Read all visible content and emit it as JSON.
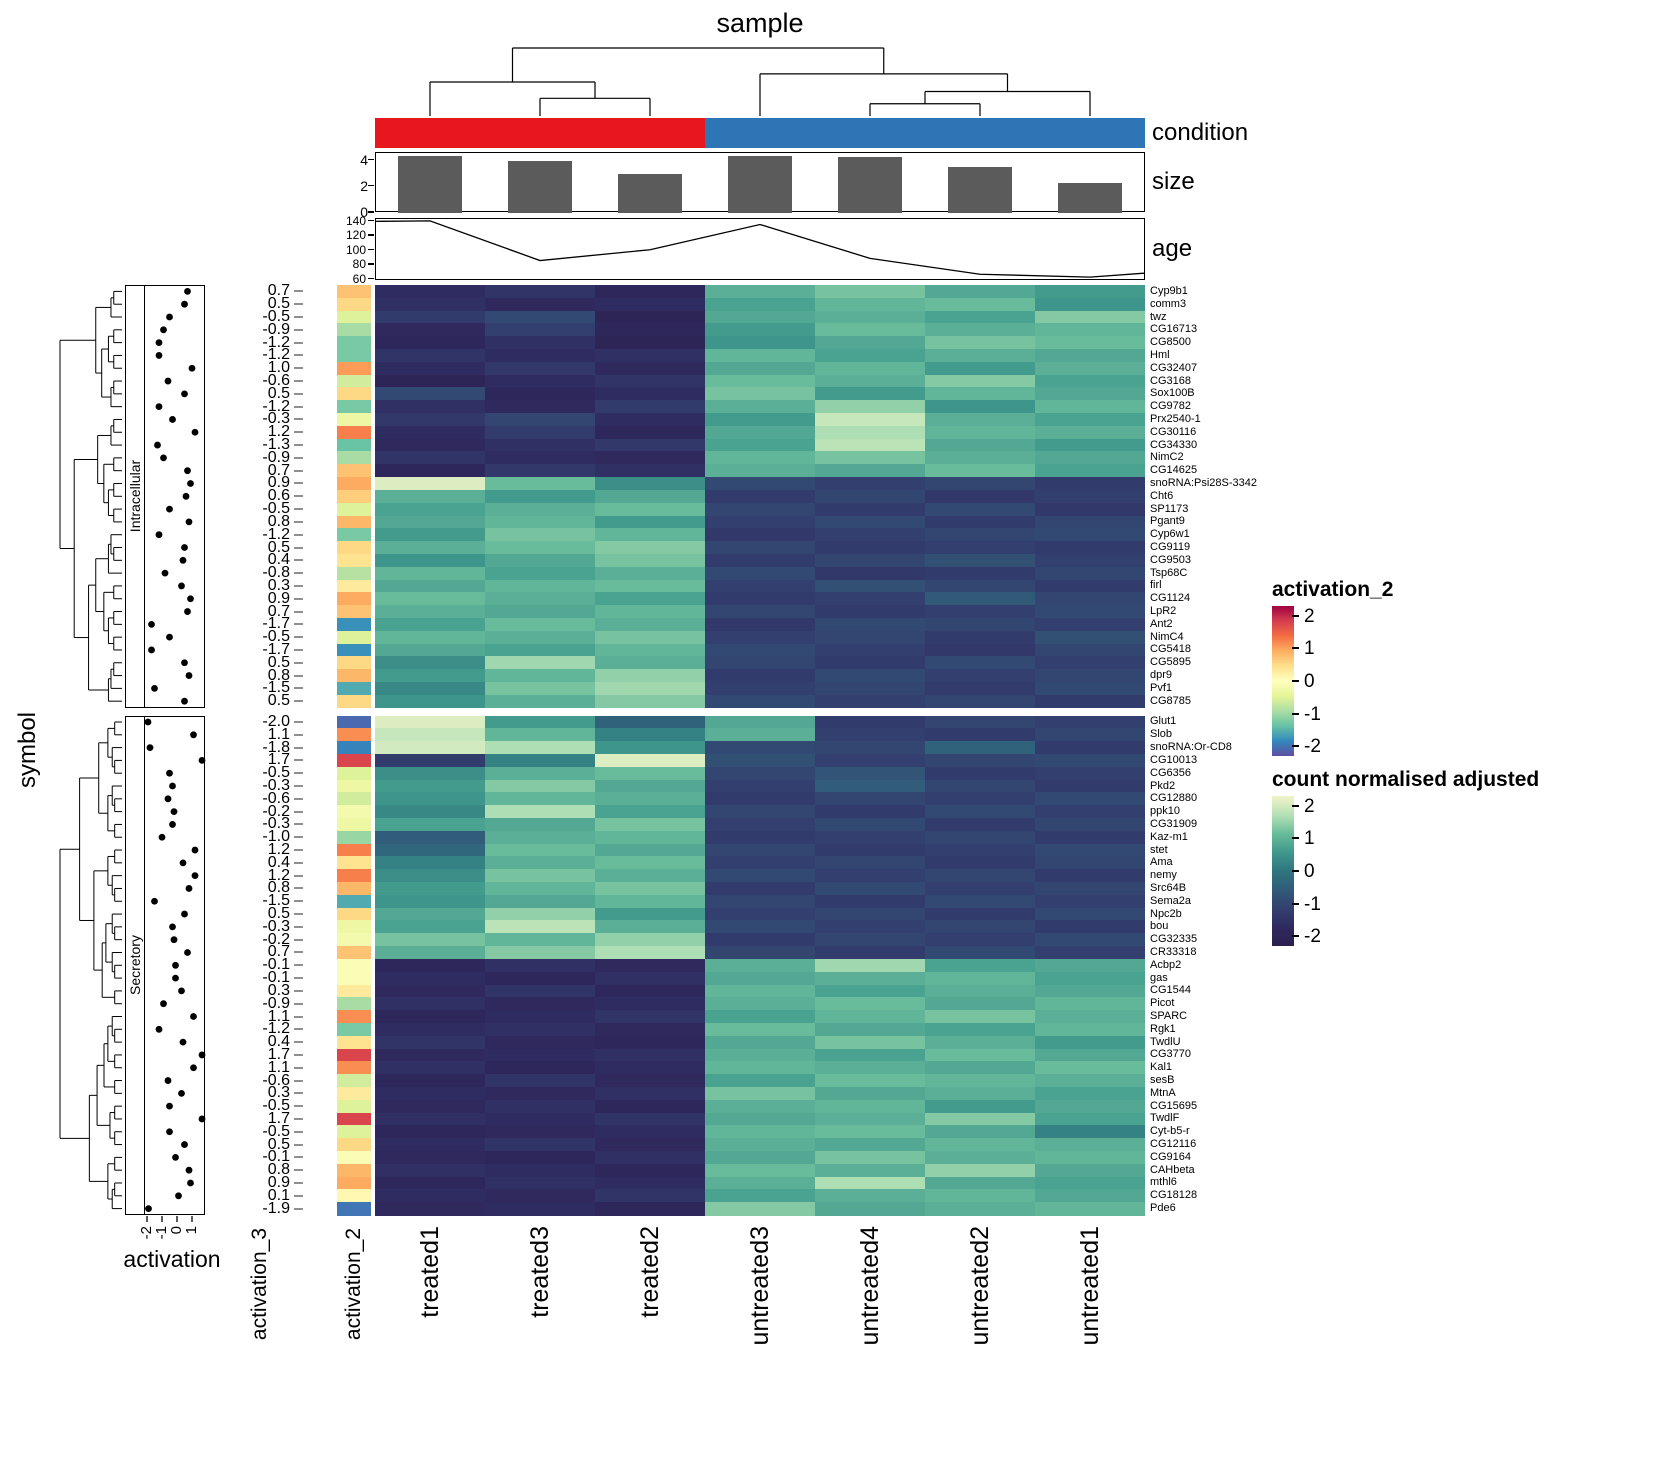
{
  "chart_data": {
    "type": "heatmap",
    "title": "sample",
    "row_axis_title": "symbol",
    "columns": [
      "treated1",
      "treated3",
      "treated2",
      "untreated3",
      "untreated4",
      "untreated2",
      "untreated1"
    ],
    "column_annotations": {
      "condition": {
        "label": "condition",
        "assignments": [
          "treated",
          "treated",
          "treated",
          "untreated",
          "untreated",
          "untreated",
          "untreated"
        ],
        "colors": {
          "treated": "#E8161D",
          "untreated": "#2E75B5"
        }
      },
      "size": {
        "label": "size",
        "values": [
          4.4,
          4.0,
          3.0,
          4.4,
          4.3,
          3.5,
          2.3
        ],
        "axis_ticks": [
          4,
          2,
          0
        ],
        "ylim": [
          0,
          4.6
        ],
        "bar_color": "#5B5B5B"
      },
      "age": {
        "label": "age",
        "values": [
          140,
          85,
          100,
          135,
          88,
          66,
          62
        ],
        "axis_ticks": [
          140,
          120,
          100,
          80,
          60
        ],
        "ylim": [
          58,
          144
        ]
      }
    },
    "row_annotations": {
      "scatter": {
        "title": "activation",
        "axis_ticks": [
          -2,
          -1,
          0,
          1
        ]
      },
      "text": {
        "title": "activation_3"
      },
      "color": {
        "title": "activation_2"
      }
    },
    "row_groups": [
      {
        "name": "Intracellular",
        "from": 0,
        "to": 32
      },
      {
        "name": "Secretory",
        "from": 33,
        "to": 71
      }
    ],
    "legends": {
      "activation_2": {
        "title": "activation_2",
        "ticks": [
          2,
          1,
          0,
          -1,
          -2
        ]
      },
      "count": {
        "title": "count normalised adjusted",
        "ticks": [
          2,
          1,
          0,
          -1,
          -2
        ]
      }
    },
    "colormaps": {
      "count": [
        [
          0,
          "#2C1E4D"
        ],
        [
          0.125,
          "#2F2A60"
        ],
        [
          0.25,
          "#33406F"
        ],
        [
          0.375,
          "#315B79"
        ],
        [
          0.5,
          "#2F767F"
        ],
        [
          0.625,
          "#3F988C"
        ],
        [
          0.75,
          "#69BC9B"
        ],
        [
          0.875,
          "#B5E1B5"
        ],
        [
          1,
          "#F3F4CA"
        ]
      ],
      "activation_2": [
        [
          0,
          "#5E4FA2"
        ],
        [
          0.1,
          "#3288BD"
        ],
        [
          0.2,
          "#66C2A5"
        ],
        [
          0.3,
          "#ABDDA4"
        ],
        [
          0.4,
          "#E6F598"
        ],
        [
          0.5,
          "#FFFFBF"
        ],
        [
          0.6,
          "#FEE08B"
        ],
        [
          0.7,
          "#FDAE61"
        ],
        [
          0.8,
          "#F46D43"
        ],
        [
          0.9,
          "#D53E4F"
        ],
        [
          1,
          "#9E0142"
        ]
      ]
    },
    "col_dendrogram": {
      "h": 1,
      "c": [
        {
          "h": 0.5,
          "c": [
            {
              "l": 0
            },
            {
              "h": 0.26,
              "c": [
                {
                  "l": 1
                },
                {
                  "l": 2
                }
              ]
            }
          ]
        },
        {
          "h": 0.62,
          "c": [
            {
              "l": 3
            },
            {
              "h": 0.36,
              "c": [
                {
                  "h": 0.18,
                  "c": [
                    {
                      "l": 4
                    },
                    {
                      "l": 5
                    }
                  ]
                },
                {
                  "l": 6
                }
              ]
            }
          ]
        }
      ]
    },
    "rows": [
      {
        "gene": "Cyp9b1",
        "activation": 0.7,
        "values": [
          -1.6,
          -1.4,
          -1.8,
          0.9,
          1.2,
          0.8,
          0.6
        ]
      },
      {
        "gene": "comm3",
        "activation": 0.5,
        "values": [
          -1.5,
          -1.7,
          -1.6,
          0.7,
          1.0,
          1.1,
          0.5
        ]
      },
      {
        "gene": "twz",
        "activation": -0.5,
        "values": [
          -1.2,
          -0.9,
          -1.9,
          0.8,
          0.9,
          0.7,
          1.3
        ]
      },
      {
        "gene": "CG16713",
        "activation": -0.9,
        "values": [
          -1.7,
          -1.1,
          -1.8,
          0.6,
          1.1,
          0.9,
          1.0
        ]
      },
      {
        "gene": "CG8500",
        "activation": -1.2,
        "values": [
          -1.8,
          -1.5,
          -1.9,
          0.5,
          0.8,
          1.2,
          1.1
        ]
      },
      {
        "gene": "Hml",
        "activation": -1.2,
        "values": [
          -1.4,
          -1.6,
          -1.5,
          1.0,
          0.7,
          0.9,
          0.8
        ]
      },
      {
        "gene": "CG32407",
        "activation": 1.0,
        "values": [
          -1.6,
          -1.3,
          -1.7,
          0.8,
          1.0,
          0.6,
          0.9
        ]
      },
      {
        "gene": "CG3168",
        "activation": -0.6,
        "values": [
          -1.9,
          -1.6,
          -1.4,
          1.1,
          0.9,
          1.3,
          0.7
        ]
      },
      {
        "gene": "Sox100B",
        "activation": 0.5,
        "values": [
          -0.9,
          -1.8,
          -1.6,
          1.2,
          0.6,
          1.0,
          0.8
        ]
      },
      {
        "gene": "CG9782",
        "activation": -1.2,
        "values": [
          -1.5,
          -1.7,
          -1.2,
          0.9,
          1.4,
          0.5,
          1.0
        ]
      },
      {
        "gene": "Prx2540-1",
        "activation": -0.3,
        "values": [
          -1.3,
          -1.0,
          -1.6,
          0.6,
          1.8,
          0.9,
          0.7
        ]
      },
      {
        "gene": "CG30116",
        "activation": 1.2,
        "values": [
          -1.6,
          -1.2,
          -1.8,
          0.8,
          1.6,
          1.0,
          0.9
        ]
      },
      {
        "gene": "CG34330",
        "activation": -1.3,
        "values": [
          -1.7,
          -1.5,
          -1.3,
          0.7,
          1.7,
          0.8,
          0.6
        ]
      },
      {
        "gene": "NimC2",
        "activation": -0.9,
        "values": [
          -1.4,
          -1.6,
          -1.7,
          1.0,
          1.2,
          0.9,
          0.8
        ]
      },
      {
        "gene": "CG14625",
        "activation": 0.7,
        "values": [
          -1.8,
          -1.3,
          -1.5,
          0.9,
          0.8,
          1.1,
          0.7
        ]
      },
      {
        "gene": "snoRNA:Psi28S-3342",
        "activation": 0.9,
        "values": [
          2.0,
          1.1,
          0.4,
          -0.9,
          -1.1,
          -1.0,
          -1.2
        ]
      },
      {
        "gene": "Cht6",
        "activation": 0.6,
        "values": [
          0.9,
          0.6,
          0.8,
          -1.2,
          -1.0,
          -1.3,
          -1.1
        ]
      },
      {
        "gene": "SP1173",
        "activation": -0.5,
        "values": [
          0.7,
          0.9,
          1.1,
          -1.0,
          -1.2,
          -0.9,
          -1.3
        ]
      },
      {
        "gene": "Pgant9",
        "activation": 0.8,
        "values": [
          0.8,
          1.0,
          0.6,
          -1.1,
          -0.9,
          -1.2,
          -1.0
        ]
      },
      {
        "gene": "Cyp6w1",
        "activation": -1.2,
        "values": [
          0.6,
          1.2,
          1.0,
          -1.3,
          -1.1,
          -1.0,
          -0.9
        ]
      },
      {
        "gene": "CG9119",
        "activation": 0.5,
        "values": [
          0.9,
          1.1,
          1.3,
          -1.0,
          -1.2,
          -1.1,
          -1.2
        ]
      },
      {
        "gene": "CG9503",
        "activation": 0.4,
        "values": [
          0.5,
          0.8,
          1.2,
          -1.2,
          -1.0,
          -0.8,
          -1.1
        ]
      },
      {
        "gene": "Tsp68C",
        "activation": -0.8,
        "values": [
          1.0,
          0.7,
          0.9,
          -0.9,
          -1.3,
          -1.2,
          -1.0
        ]
      },
      {
        "gene": "firl",
        "activation": 0.3,
        "values": [
          0.8,
          1.0,
          1.1,
          -1.1,
          -0.8,
          -1.0,
          -1.2
        ]
      },
      {
        "gene": "CG1124",
        "activation": 0.9,
        "values": [
          1.1,
          0.9,
          0.7,
          -1.2,
          -1.1,
          -0.6,
          -1.0
        ]
      },
      {
        "gene": "LpR2",
        "activation": 0.7,
        "values": [
          0.9,
          0.8,
          1.0,
          -1.0,
          -1.2,
          -1.1,
          -0.9
        ]
      },
      {
        "gene": "Ant2",
        "activation": -1.7,
        "values": [
          0.7,
          1.1,
          0.9,
          -1.3,
          -0.9,
          -1.0,
          -1.1
        ]
      },
      {
        "gene": "NimC4",
        "activation": -0.5,
        "values": [
          1.0,
          0.9,
          1.2,
          -1.1,
          -1.0,
          -1.2,
          -0.8
        ]
      },
      {
        "gene": "CG5418",
        "activation": -1.7,
        "values": [
          0.8,
          0.7,
          1.0,
          -0.9,
          -1.1,
          -1.3,
          -1.0
        ]
      },
      {
        "gene": "CG5895",
        "activation": 0.5,
        "values": [
          0.4,
          1.5,
          0.9,
          -1.0,
          -1.2,
          -0.9,
          -1.1
        ]
      },
      {
        "gene": "dpr9",
        "activation": 0.8,
        "values": [
          0.6,
          1.0,
          1.4,
          -1.2,
          -0.9,
          -1.1,
          -1.0
        ]
      },
      {
        "gene": "Pvf1",
        "activation": -1.5,
        "values": [
          0.3,
          1.2,
          1.5,
          -1.1,
          -1.0,
          -1.2,
          -0.9
        ]
      },
      {
        "gene": "CG8785",
        "activation": 0.5,
        "values": [
          0.5,
          0.9,
          1.3,
          -0.9,
          -1.1,
          -1.0,
          -1.2
        ]
      },
      {
        "gene": "Glut1",
        "activation": -2.0,
        "values": [
          2.0,
          0.6,
          -0.4,
          0.8,
          -1.2,
          -1.0,
          -1.1
        ]
      },
      {
        "gene": "Slob",
        "activation": 1.1,
        "values": [
          1.8,
          1.0,
          0.2,
          0.9,
          -1.1,
          -1.2,
          -1.0
        ]
      },
      {
        "gene": "snoRNA:Or-CD8",
        "activation": -1.8,
        "values": [
          1.9,
          1.6,
          0.5,
          -0.9,
          -1.0,
          -0.4,
          -1.2
        ]
      },
      {
        "gene": "CG10013",
        "activation": 1.7,
        "values": [
          -1.2,
          0.2,
          2.0,
          -0.8,
          -1.1,
          -1.0,
          -0.9
        ]
      },
      {
        "gene": "CG6356",
        "activation": -0.5,
        "values": [
          0.4,
          0.9,
          1.1,
          -1.0,
          -0.7,
          -1.2,
          -1.1
        ]
      },
      {
        "gene": "Pkd2",
        "activation": -0.3,
        "values": [
          0.6,
          1.3,
          0.8,
          -1.1,
          -0.5,
          -1.0,
          -1.2
        ]
      },
      {
        "gene": "CG12880",
        "activation": -0.6,
        "values": [
          0.5,
          1.0,
          0.9,
          -1.2,
          -1.0,
          -1.1,
          -0.9
        ]
      },
      {
        "gene": "ppk10",
        "activation": -0.2,
        "values": [
          0.3,
          1.6,
          0.7,
          -1.0,
          -1.2,
          -0.9,
          -1.1
        ]
      },
      {
        "gene": "CG31909",
        "activation": -0.3,
        "values": [
          0.7,
          0.8,
          1.2,
          -1.1,
          -0.9,
          -1.2,
          -1.0
        ]
      },
      {
        "gene": "Kaz-m1",
        "activation": -1.0,
        "values": [
          -0.5,
          0.9,
          1.0,
          -1.2,
          -1.1,
          -1.0,
          -1.2
        ]
      },
      {
        "gene": "stet",
        "activation": 1.2,
        "values": [
          -0.3,
          1.1,
          0.8,
          -1.0,
          -1.2,
          -1.1,
          -0.9
        ]
      },
      {
        "gene": "Ama",
        "activation": 0.4,
        "values": [
          0.2,
          0.9,
          1.1,
          -1.1,
          -1.0,
          -1.2,
          -1.0
        ]
      },
      {
        "gene": "nemy",
        "activation": 1.2,
        "values": [
          0.4,
          1.2,
          0.9,
          -0.9,
          -1.1,
          -1.0,
          -1.2
        ]
      },
      {
        "gene": "Src64B",
        "activation": 0.8,
        "values": [
          0.6,
          1.0,
          1.2,
          -1.2,
          -0.9,
          -1.1,
          -1.0
        ]
      },
      {
        "gene": "Sema2a",
        "activation": -1.5,
        "values": [
          0.5,
          0.8,
          1.0,
          -1.0,
          -1.2,
          -0.9,
          -1.1
        ]
      },
      {
        "gene": "Npc2b",
        "activation": 0.5,
        "values": [
          0.8,
          1.4,
          0.6,
          -1.1,
          -1.0,
          -1.2,
          -0.9
        ]
      },
      {
        "gene": "bou",
        "activation": -0.3,
        "values": [
          0.7,
          1.7,
          0.9,
          -0.9,
          -1.1,
          -1.0,
          -1.2
        ]
      },
      {
        "gene": "CG32335",
        "activation": -0.2,
        "values": [
          1.2,
          1.0,
          1.4,
          -1.2,
          -1.0,
          -1.1,
          -0.9
        ]
      },
      {
        "gene": "CR33318",
        "activation": 0.7,
        "values": [
          0.9,
          1.3,
          1.6,
          -1.0,
          -1.2,
          -0.9,
          -1.1
        ]
      },
      {
        "gene": "Acbp2",
        "activation": -0.1,
        "values": [
          -1.8,
          -1.5,
          -1.7,
          0.9,
          1.5,
          0.7,
          0.8
        ]
      },
      {
        "gene": "gas",
        "activation": -0.1,
        "values": [
          -1.6,
          -1.8,
          -1.5,
          0.8,
          0.9,
          1.0,
          0.7
        ]
      },
      {
        "gene": "CG1544",
        "activation": 0.3,
        "values": [
          -1.7,
          -1.4,
          -1.8,
          1.0,
          0.7,
          0.9,
          0.8
        ]
      },
      {
        "gene": "Picot",
        "activation": -0.9,
        "values": [
          -1.5,
          -1.7,
          -1.6,
          0.9,
          1.1,
          0.8,
          1.0
        ]
      },
      {
        "gene": "SPARC",
        "activation": 1.1,
        "values": [
          -1.8,
          -1.6,
          -1.4,
          0.7,
          1.0,
          1.2,
          0.9
        ]
      },
      {
        "gene": "Rgk1",
        "activation": -1.2,
        "values": [
          -1.6,
          -1.5,
          -1.7,
          1.1,
          0.8,
          0.7,
          1.0
        ]
      },
      {
        "gene": "TwdlU",
        "activation": 0.4,
        "values": [
          -1.4,
          -1.7,
          -1.8,
          0.8,
          1.2,
          0.9,
          0.6
        ]
      },
      {
        "gene": "CG3770",
        "activation": 1.7,
        "values": [
          -1.7,
          -1.6,
          -1.5,
          0.9,
          0.7,
          1.1,
          0.8
        ]
      },
      {
        "gene": "Kal1",
        "activation": 1.1,
        "values": [
          -1.5,
          -1.8,
          -1.6,
          1.0,
          0.9,
          0.8,
          1.1
        ]
      },
      {
        "gene": "sesB",
        "activation": -0.6,
        "values": [
          -1.8,
          -1.4,
          -1.7,
          0.7,
          1.1,
          1.0,
          0.9
        ]
      },
      {
        "gene": "MtnA",
        "activation": 0.3,
        "values": [
          -1.6,
          -1.7,
          -1.5,
          1.2,
          0.8,
          0.9,
          0.7
        ]
      },
      {
        "gene": "CG15695",
        "activation": -0.5,
        "values": [
          -1.7,
          -1.5,
          -1.8,
          0.9,
          1.0,
          0.6,
          0.8
        ]
      },
      {
        "gene": "TwdlF",
        "activation": 1.7,
        "values": [
          -1.5,
          -1.6,
          -1.4,
          0.8,
          0.9,
          1.3,
          0.7
        ]
      },
      {
        "gene": "Cyt-b5-r",
        "activation": -0.5,
        "values": [
          -1.8,
          -1.7,
          -1.6,
          1.0,
          1.1,
          0.8,
          0.2
        ]
      },
      {
        "gene": "CG12116",
        "activation": 0.5,
        "values": [
          -1.6,
          -1.4,
          -1.7,
          0.9,
          0.8,
          1.0,
          0.9
        ]
      },
      {
        "gene": "CG9164",
        "activation": -0.1,
        "values": [
          -1.7,
          -1.8,
          -1.5,
          0.8,
          1.2,
          0.9,
          1.0
        ]
      },
      {
        "gene": "CAHbeta",
        "activation": 0.8,
        "values": [
          -1.5,
          -1.6,
          -1.8,
          1.1,
          0.9,
          1.4,
          0.8
        ]
      },
      {
        "gene": "mthl6",
        "activation": 0.9,
        "values": [
          -1.8,
          -1.5,
          -1.6,
          0.9,
          1.6,
          0.8,
          0.7
        ]
      },
      {
        "gene": "CG18128",
        "activation": 0.1,
        "values": [
          -1.6,
          -1.7,
          -1.4,
          0.7,
          0.9,
          1.0,
          0.8
        ]
      },
      {
        "gene": "Pde6",
        "activation": -1.9,
        "values": [
          -1.7,
          -1.6,
          -1.8,
          1.3,
          0.8,
          0.9,
          1.0
        ]
      }
    ]
  }
}
